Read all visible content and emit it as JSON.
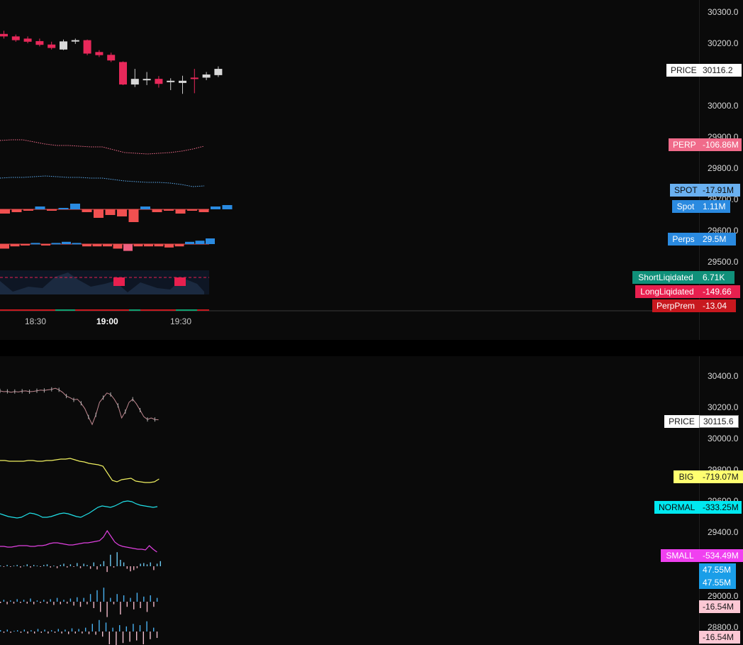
{
  "top_chart": {
    "y_axis_ticks": [
      "30300.0",
      "30200.0",
      "30000.0",
      "29900.0",
      "29800.0",
      "29700.0",
      "29600.0",
      "29500.0"
    ],
    "x_axis_ticks": [
      {
        "label": "18:30",
        "bold": false
      },
      {
        "label": "19:00",
        "bold": true
      },
      {
        "label": "19:30",
        "bold": false
      }
    ],
    "tags": [
      {
        "label": "PRICE",
        "value": "30116.2",
        "label_bg": "#ffffff",
        "label_fg": "#1a1a1a",
        "value_bg": "#ffffff",
        "value_fg": "#1a1a1a"
      },
      {
        "label": "PERP",
        "value": "-106.86M",
        "label_bg": "#f06b8a",
        "label_fg": "#ffffff",
        "value_bg": "#f06b8a",
        "value_fg": "#ffffff"
      },
      {
        "label": "SPOT",
        "value": "-17.91M",
        "label_bg": "#6ab0f0",
        "label_fg": "#0a0a0a",
        "value_bg": "#6ab0f0",
        "value_fg": "#0a0a0a"
      },
      {
        "label": "Spot",
        "value": "1.11M",
        "label_bg": "#2a8ae0",
        "label_fg": "#ffffff",
        "value_bg": "#2a8ae0",
        "value_fg": "#ffffff"
      },
      {
        "label": "Perps",
        "value": "29.5M",
        "label_bg": "#2a8ae0",
        "label_fg": "#ffffff",
        "value_bg": "#2a8ae0",
        "value_fg": "#ffffff"
      },
      {
        "label": "ShortLiqidated",
        "value": "6.71K",
        "label_bg": "#10907a",
        "label_fg": "#ffffff",
        "value_bg": "#10907a",
        "value_fg": "#ffffff"
      },
      {
        "label": "LongLiqidated",
        "value": "-149.66",
        "label_bg": "#e8204f",
        "label_fg": "#ffffff",
        "value_bg": "#e8204f",
        "value_fg": "#ffffff"
      },
      {
        "label": "PerpPrem",
        "value": "-13.04",
        "label_bg": "#c8181e",
        "label_fg": "#ffffff",
        "value_bg": "#c8181e",
        "value_fg": "#ffffff"
      }
    ],
    "candles": [
      {
        "o": 30230,
        "h": 30240,
        "l": 30215,
        "c": 30222
      },
      {
        "o": 30222,
        "h": 30228,
        "l": 30205,
        "c": 30210
      },
      {
        "o": 30215,
        "h": 30222,
        "l": 30200,
        "c": 30205
      },
      {
        "o": 30207,
        "h": 30215,
        "l": 30190,
        "c": 30195
      },
      {
        "o": 30196,
        "h": 30205,
        "l": 30180,
        "c": 30185
      },
      {
        "o": 30180,
        "h": 30212,
        "l": 30178,
        "c": 30206
      },
      {
        "o": 30206,
        "h": 30215,
        "l": 30198,
        "c": 30210
      },
      {
        "o": 30210,
        "h": 30212,
        "l": 30162,
        "c": 30167
      },
      {
        "o": 30172,
        "h": 30178,
        "l": 30156,
        "c": 30162
      },
      {
        "o": 30163,
        "h": 30170,
        "l": 30140,
        "c": 30145
      },
      {
        "o": 30140,
        "h": 30142,
        "l": 30066,
        "c": 30068
      },
      {
        "o": 30068,
        "h": 30118,
        "l": 30060,
        "c": 30086
      },
      {
        "o": 30086,
        "h": 30108,
        "l": 30066,
        "c": 30086
      },
      {
        "o": 30086,
        "h": 30095,
        "l": 30058,
        "c": 30070
      },
      {
        "o": 30076,
        "h": 30088,
        "l": 30050,
        "c": 30080
      },
      {
        "o": 30073,
        "h": 30096,
        "l": 30038,
        "c": 30080
      },
      {
        "o": 30090,
        "h": 30118,
        "l": 30040,
        "c": 30088
      },
      {
        "o": 30090,
        "h": 30108,
        "l": 30082,
        "c": 30100
      },
      {
        "o": 30098,
        "h": 30126,
        "l": 30092,
        "c": 30118
      }
    ],
    "perp_cvd": [
      40,
      41,
      41,
      38,
      35,
      33,
      33,
      32,
      31,
      31,
      27,
      23,
      22,
      21,
      22,
      23,
      25,
      28,
      32
    ],
    "spot_cvd": [
      30,
      31,
      31,
      32,
      33,
      32,
      31,
      31,
      30,
      30,
      28,
      26,
      25,
      24,
      24,
      23,
      21,
      18,
      19
    ],
    "spot_delta": [
      -3,
      -2,
      -1,
      2,
      -1,
      1,
      4,
      -2,
      -6,
      -4,
      -5,
      -9,
      2,
      -2,
      -1,
      -3,
      -1,
      -2,
      2,
      3
    ],
    "perps_delta": [
      -4,
      -2,
      -1,
      1,
      -1,
      1,
      2,
      1,
      -2,
      -2,
      -2,
      -4,
      -6,
      -2,
      -2,
      -2,
      -3,
      -2,
      2,
      3,
      5
    ]
  },
  "bottom_chart": {
    "y_axis_ticks": [
      "30400.0",
      "30200.0",
      "30000.0",
      "29800.0",
      "29600.0",
      "29400.0",
      "29000.0",
      "28800.0"
    ],
    "tags": [
      {
        "label": "PRICE",
        "value": "30115.6",
        "label_bg": "#ffffff",
        "label_fg": "#1a1a1a",
        "value_bg": "#ffffff",
        "value_fg": "#1a1a1a"
      },
      {
        "label": "BIG",
        "value": "-719.07M",
        "label_bg": "#ffff70",
        "label_fg": "#1a1a1a",
        "value_bg": "#ffff70",
        "value_fg": "#1a1a1a"
      },
      {
        "label": "NORMAL",
        "value": "-333.25M",
        "label_bg": "#00e8f0",
        "label_fg": "#0a0a0a",
        "value_bg": "#00e8f0",
        "value_fg": "#0a0a0a"
      },
      {
        "label": "SMALL",
        "value": "-534.49M",
        "label_bg": "#f040f0",
        "label_fg": "#ffffff",
        "value_bg": "#f040f0",
        "value_fg": "#ffffff"
      },
      {
        "label": "",
        "value": "47.55M",
        "label_bg": "#1a9ee8",
        "label_fg": "#ffffff",
        "value_bg": "#1a9ee8",
        "value_fg": "#ffffff"
      },
      {
        "label": "",
        "value": "47.55M",
        "label_bg": "#1a9ee8",
        "label_fg": "#ffffff",
        "value_bg": "#1a9ee8",
        "value_fg": "#ffffff"
      },
      {
        "label": "",
        "value": "-16.54M",
        "label_bg": "#fcc8d4",
        "label_fg": "#1a1a1a",
        "value_bg": "#fcc8d4",
        "value_fg": "#1a1a1a"
      },
      {
        "label": "",
        "value": "-16.54M",
        "label_bg": "#fcc8d4",
        "label_fg": "#1a1a1a",
        "value_bg": "#fcc8d4",
        "value_fg": "#1a1a1a"
      }
    ],
    "price_line": [
      30305,
      30300,
      30302,
      30296,
      30301,
      30298,
      30303,
      30305,
      30300,
      30302,
      30306,
      30310,
      30308,
      30312,
      30315,
      30322,
      30312,
      30296,
      30272,
      30262,
      30248,
      30252,
      30226,
      30192,
      30138,
      30090,
      30152,
      30232,
      30262,
      30292,
      30282,
      30252,
      30212,
      30132,
      30172,
      30232,
      30252,
      30222,
      30182,
      30140,
      30122,
      30132,
      30122,
      30120
    ],
    "big_line": [
      38,
      38,
      37,
      37,
      37,
      37,
      38,
      38,
      37,
      37,
      38,
      38,
      39,
      40,
      40,
      41,
      39,
      37,
      36,
      34,
      33,
      32,
      30,
      20,
      10,
      8,
      11,
      12,
      13,
      9,
      8,
      7,
      7,
      8,
      12
    ],
    "normal_line": [
      35,
      33,
      31,
      30,
      29,
      30,
      33,
      36,
      35,
      33,
      30,
      30,
      31,
      33,
      35,
      36,
      35,
      33,
      31,
      30,
      33,
      36,
      40,
      44,
      46,
      45,
      44,
      46,
      49,
      52,
      53,
      52,
      49,
      47,
      46,
      45,
      44,
      45
    ],
    "small_line": [
      32,
      32,
      31,
      31,
      32,
      33,
      33,
      33,
      32,
      32,
      33,
      33,
      34,
      36,
      37,
      37,
      36,
      35,
      34,
      34,
      35,
      36,
      37,
      37,
      38,
      39,
      40,
      45,
      54,
      46,
      38,
      34,
      32,
      31,
      30,
      29,
      28,
      28,
      27,
      33,
      28,
      24
    ],
    "hist_a": [
      1,
      -1,
      2,
      -1,
      1,
      2,
      -2,
      1,
      3,
      -2,
      2,
      1,
      -1,
      2,
      3,
      -2,
      1,
      -3,
      2,
      4,
      -2,
      3,
      -1,
      5,
      -3,
      4,
      2,
      -4,
      6,
      -5,
      3,
      8,
      -9,
      18,
      -2,
      22,
      10,
      6,
      -4,
      -8,
      -6,
      -3,
      4,
      5,
      3,
      6,
      -6,
      4,
      8
    ],
    "hist_b": [
      -2,
      3,
      -4,
      2,
      -3,
      4,
      -2,
      3,
      -3,
      5,
      -4,
      2,
      -2,
      3,
      -3,
      4,
      -5,
      6,
      -4,
      3,
      -3,
      5,
      -6,
      7,
      -8,
      6,
      -4,
      12,
      -10,
      18,
      -16,
      22,
      -24,
      6,
      -4,
      12,
      -20,
      10,
      -8,
      6,
      -12,
      14,
      -10,
      8,
      -16,
      10,
      -8,
      6
    ],
    "hist_c": [
      2,
      -2,
      3,
      -2,
      1,
      2,
      -2,
      3,
      -3,
      2,
      -3,
      4,
      -2,
      3,
      -3,
      2,
      -2,
      4,
      -3,
      3,
      -4,
      5,
      -3,
      4,
      -3,
      6,
      -4,
      12,
      -5,
      18,
      -8,
      14,
      -20,
      6,
      -22,
      10,
      -18,
      8,
      -16,
      12,
      -14,
      10,
      -20,
      16,
      -12,
      6,
      -10
    ]
  }
}
